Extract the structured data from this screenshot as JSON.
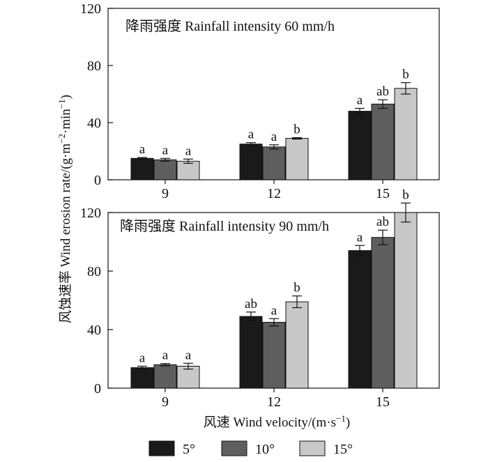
{
  "chart_data": [
    {
      "type": "bar",
      "title": "降雨强度 Rainfall intensity 60 mm/h",
      "categories": [
        "9",
        "12",
        "15"
      ],
      "ylim": [
        0,
        120
      ],
      "yticks": [
        "0",
        "40",
        "80",
        "120"
      ],
      "series": [
        {
          "name": "5°",
          "color": "#1a1a1a",
          "values": [
            15,
            25,
            48
          ],
          "errors": [
            0.6,
            1.0,
            2.0
          ],
          "labels": [
            "a",
            "a",
            "a"
          ]
        },
        {
          "name": "10°",
          "color": "#5e5e5e",
          "values": [
            14,
            23,
            53
          ],
          "errors": [
            1.0,
            1.5,
            3.0
          ],
          "labels": [
            "a",
            "a",
            "ab"
          ]
        },
        {
          "name": "15°",
          "color": "#c8c8c8",
          "values": [
            13,
            29,
            64
          ],
          "errors": [
            1.5,
            0.5,
            4.0
          ],
          "labels": [
            "a",
            "b",
            "b"
          ]
        }
      ]
    },
    {
      "type": "bar",
      "title": "降雨强度 Rainfall intensity 90 mm/h",
      "categories": [
        "9",
        "12",
        "15"
      ],
      "ylim": [
        0,
        120
      ],
      "yticks": [
        "0",
        "40",
        "80",
        "120"
      ],
      "series": [
        {
          "name": "5°",
          "color": "#1a1a1a",
          "values": [
            14,
            49,
            94
          ],
          "errors": [
            1.0,
            3.0,
            3.5
          ],
          "labels": [
            "a",
            "ab",
            "a"
          ]
        },
        {
          "name": "10°",
          "color": "#5e5e5e",
          "values": [
            16,
            45,
            103
          ],
          "errors": [
            0.8,
            2.5,
            5.0
          ],
          "labels": [
            "a",
            "a",
            "ab"
          ]
        },
        {
          "name": "15°",
          "color": "#c8c8c8",
          "values": [
            15,
            59,
            120
          ],
          "errors": [
            2.0,
            4.0,
            6.5
          ],
          "labels": [
            "a",
            "b",
            "b"
          ]
        }
      ]
    }
  ],
  "axes": {
    "y_title_text": "风蚀速率 Wind erosion rate/(g·m",
    "y_title_exp1": "−2",
    "y_title_mid": "·min",
    "y_title_exp2": "−1",
    "y_title_end": ")",
    "x_title_text": "风速 Wind velocity/(m·s",
    "x_title_exp": "−1",
    "x_title_end": ")"
  },
  "legend": [
    {
      "label": "5°",
      "color": "#1a1a1a"
    },
    {
      "label": "10°",
      "color": "#5e5e5e"
    },
    {
      "label": "15°",
      "color": "#c8c8c8"
    }
  ]
}
